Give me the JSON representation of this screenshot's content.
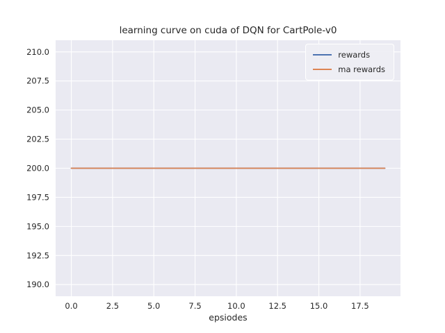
{
  "figure": {
    "background": "#ffffff",
    "axes_background": "#eaeaf2",
    "grid_color": "#ffffff",
    "text_color": "#262626"
  },
  "chart_data": {
    "type": "line",
    "title": "learning curve on cuda of DQN for CartPole-v0",
    "xlabel": "epsiodes",
    "ylabel": "",
    "xlim": [
      -0.95,
      19.95
    ],
    "ylim": [
      189.0,
      211.0
    ],
    "xticks": [
      0.0,
      2.5,
      5.0,
      7.5,
      10.0,
      12.5,
      15.0,
      17.5
    ],
    "yticks": [
      190.0,
      192.5,
      195.0,
      197.5,
      200.0,
      202.5,
      205.0,
      207.5,
      210.0
    ],
    "grid": true,
    "legend_position": "upper right",
    "series": [
      {
        "name": "rewards",
        "color": "#4c72b0",
        "x": [
          0,
          1,
          2,
          3,
          4,
          5,
          6,
          7,
          8,
          9,
          10,
          11,
          12,
          13,
          14,
          15,
          16,
          17,
          18,
          19
        ],
        "y": [
          200,
          200,
          200,
          200,
          200,
          200,
          200,
          200,
          200,
          200,
          200,
          200,
          200,
          200,
          200,
          200,
          200,
          200,
          200,
          200
        ]
      },
      {
        "name": "ma rewards",
        "color": "#dd8452",
        "x": [
          0,
          1,
          2,
          3,
          4,
          5,
          6,
          7,
          8,
          9,
          10,
          11,
          12,
          13,
          14,
          15,
          16,
          17,
          18,
          19
        ],
        "y": [
          200,
          200,
          200,
          200,
          200,
          200,
          200,
          200,
          200,
          200,
          200,
          200,
          200,
          200,
          200,
          200,
          200,
          200,
          200,
          200
        ]
      }
    ]
  }
}
